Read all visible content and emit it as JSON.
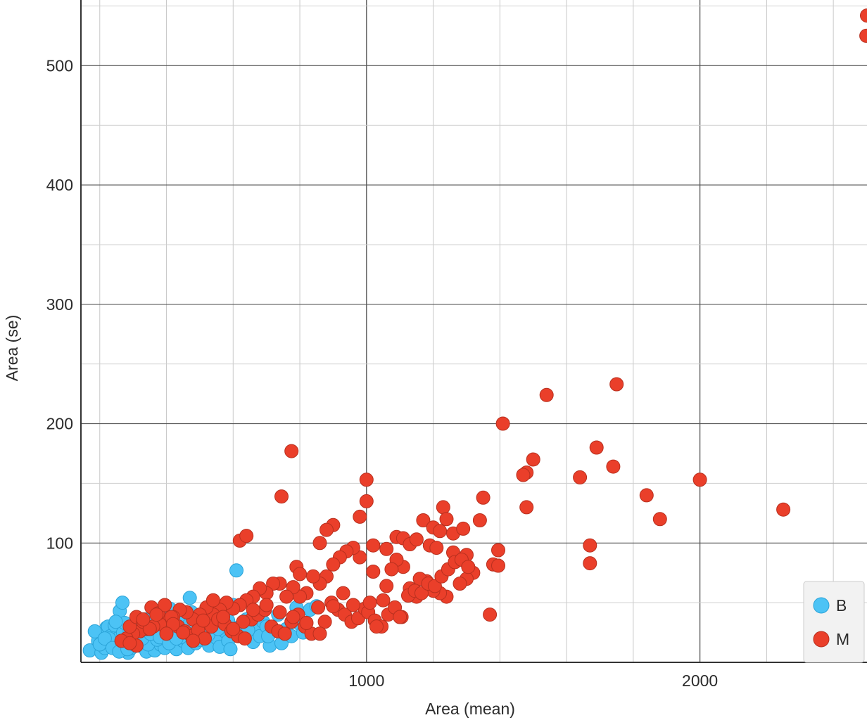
{
  "chart_data": {
    "type": "scatter",
    "xlabel": "Area (mean)",
    "ylabel": "Area (se)",
    "xlim": [
      143.5,
      2501
    ],
    "ylim": [
      0,
      555
    ],
    "x_ticks": [
      1000,
      2000
    ],
    "y_ticks": [
      100,
      200,
      300,
      400,
      500
    ],
    "grid": true,
    "legend_placement": "bottom-right",
    "series": [
      {
        "name": "B",
        "color": "#4cc3f5",
        "points": [
          [
            170,
            10
          ],
          [
            195,
            18
          ],
          [
            205,
            8
          ],
          [
            215,
            12
          ],
          [
            220,
            29
          ],
          [
            225,
            30
          ],
          [
            232,
            22
          ],
          [
            240,
            14
          ],
          [
            245,
            31
          ],
          [
            250,
            18
          ],
          [
            255,
            20
          ],
          [
            260,
            43
          ],
          [
            262,
            10
          ],
          [
            268,
            50
          ],
          [
            270,
            25
          ],
          [
            275,
            33
          ],
          [
            278,
            16
          ],
          [
            285,
            8
          ],
          [
            290,
            26
          ],
          [
            295,
            12
          ],
          [
            300,
            28
          ],
          [
            305,
            19
          ],
          [
            310,
            34
          ],
          [
            312,
            22
          ],
          [
            318,
            14
          ],
          [
            325,
            16
          ],
          [
            330,
            30
          ],
          [
            335,
            36
          ],
          [
            340,
            9
          ],
          [
            345,
            24
          ],
          [
            350,
            27
          ],
          [
            355,
            18
          ],
          [
            360,
            33
          ],
          [
            365,
            10
          ],
          [
            370,
            28
          ],
          [
            378,
            40
          ],
          [
            382,
            15
          ],
          [
            390,
            22
          ],
          [
            395,
            12
          ],
          [
            400,
            36
          ],
          [
            405,
            26
          ],
          [
            410,
            45
          ],
          [
            418,
            17
          ],
          [
            425,
            30
          ],
          [
            430,
            11
          ],
          [
            438,
            24
          ],
          [
            445,
            38
          ],
          [
            450,
            18
          ],
          [
            458,
            28
          ],
          [
            465,
            12
          ],
          [
            470,
            54
          ],
          [
            475,
            42
          ],
          [
            480,
            22
          ],
          [
            488,
            16
          ],
          [
            495,
            33
          ],
          [
            500,
            25
          ],
          [
            510,
            19
          ],
          [
            520,
            28
          ],
          [
            528,
            14
          ],
          [
            535,
            36
          ],
          [
            540,
            24
          ],
          [
            545,
            45
          ],
          [
            552,
            20
          ],
          [
            560,
            13
          ],
          [
            568,
            32
          ],
          [
            575,
            26
          ],
          [
            585,
            18
          ],
          [
            592,
            11
          ],
          [
            600,
            48
          ],
          [
            610,
            77
          ],
          [
            620,
            30
          ],
          [
            630,
            24
          ],
          [
            640,
            36
          ],
          [
            650,
            20
          ],
          [
            660,
            17
          ],
          [
            670,
            28
          ],
          [
            680,
            22
          ],
          [
            690,
            34
          ],
          [
            700,
            30
          ],
          [
            710,
            14
          ],
          [
            720,
            26
          ],
          [
            735,
            40
          ],
          [
            745,
            16
          ],
          [
            760,
            28
          ],
          [
            775,
            22
          ],
          [
            790,
            46
          ],
          [
            800,
            32
          ],
          [
            810,
            25
          ],
          [
            830,
            44
          ],
          [
            850,
            47
          ],
          [
            185,
            26
          ],
          [
            200,
            15
          ],
          [
            228,
            20
          ],
          [
            248,
            34
          ],
          [
            272,
            18
          ],
          [
            290,
            20
          ],
          [
            320,
            28
          ],
          [
            345,
            15
          ],
          [
            372,
            19
          ],
          [
            388,
            31
          ],
          [
            415,
            27
          ],
          [
            442,
            21
          ],
          [
            466,
            31
          ],
          [
            498,
            19
          ],
          [
            525,
            23
          ],
          [
            555,
            28
          ],
          [
            585,
            35
          ],
          [
            615,
            22
          ],
          [
            645,
            27
          ],
          [
            705,
            22
          ],
          [
            215,
            20
          ],
          [
            238,
            12
          ],
          [
            258,
            9
          ],
          [
            283,
            11
          ],
          [
            302,
            15
          ],
          [
            328,
            20
          ],
          [
            352,
            24
          ],
          [
            380,
            21
          ],
          [
            408,
            16
          ],
          [
            430,
            20
          ]
        ]
      },
      {
        "name": "M",
        "color": "#ea3f2a",
        "points": [
          [
            2501,
            542
          ],
          [
            2499,
            525
          ],
          [
            1750,
            233
          ],
          [
            1540,
            224
          ],
          [
            1409,
            200
          ],
          [
            1690,
            180
          ],
          [
            1500,
            170
          ],
          [
            775,
            177
          ],
          [
            1480,
            159
          ],
          [
            1470,
            157
          ],
          [
            1640,
            155
          ],
          [
            1740,
            164
          ],
          [
            2000,
            153
          ],
          [
            1000,
            153
          ],
          [
            1840,
            140
          ],
          [
            1000,
            135
          ],
          [
            745,
            139
          ],
          [
            1350,
            138
          ],
          [
            2250,
            128
          ],
          [
            1880,
            120
          ],
          [
            1480,
            130
          ],
          [
            1230,
            130
          ],
          [
            1240,
            120
          ],
          [
            1170,
            119
          ],
          [
            1340,
            119
          ],
          [
            1200,
            113
          ],
          [
            1220,
            110
          ],
          [
            1260,
            108
          ],
          [
            1290,
            112
          ],
          [
            980,
            122
          ],
          [
            900,
            115
          ],
          [
            880,
            111
          ],
          [
            860,
            100
          ],
          [
            1020,
            98
          ],
          [
            1060,
            95
          ],
          [
            1090,
            105
          ],
          [
            1110,
            104
          ],
          [
            1130,
            99
          ],
          [
            1150,
            103
          ],
          [
            1190,
            98
          ],
          [
            1210,
            96
          ],
          [
            1260,
            92
          ],
          [
            1300,
            90
          ],
          [
            1395,
            94
          ],
          [
            1670,
            98
          ],
          [
            1670,
            83
          ],
          [
            1380,
            82
          ],
          [
            1395,
            81
          ],
          [
            1320,
            75
          ],
          [
            1300,
            70
          ],
          [
            1280,
            66
          ],
          [
            1240,
            55
          ],
          [
            1220,
            58
          ],
          [
            1200,
            60
          ],
          [
            1180,
            68
          ],
          [
            1160,
            70
          ],
          [
            1150,
            55
          ],
          [
            1130,
            62
          ],
          [
            1110,
            80
          ],
          [
            1090,
            86
          ],
          [
            1075,
            78
          ],
          [
            1060,
            64
          ],
          [
            1050,
            52
          ],
          [
            1020,
            76
          ],
          [
            980,
            88
          ],
          [
            960,
            96
          ],
          [
            940,
            93
          ],
          [
            920,
            88
          ],
          [
            900,
            82
          ],
          [
            880,
            72
          ],
          [
            860,
            66
          ],
          [
            840,
            72
          ],
          [
            820,
            58
          ],
          [
            800,
            55
          ],
          [
            780,
            63
          ],
          [
            760,
            55
          ],
          [
            740,
            66
          ],
          [
            720,
            66
          ],
          [
            700,
            58
          ],
          [
            680,
            62
          ],
          [
            660,
            55
          ],
          [
            640,
            52
          ],
          [
            620,
            48
          ],
          [
            600,
            45
          ],
          [
            580,
            50
          ],
          [
            560,
            44
          ],
          [
            540,
            40
          ],
          [
            520,
            46
          ],
          [
            500,
            40
          ],
          [
            480,
            36
          ],
          [
            460,
            42
          ],
          [
            440,
            44
          ],
          [
            420,
            38
          ],
          [
            400,
            36
          ],
          [
            380,
            32
          ],
          [
            360,
            30
          ],
          [
            340,
            28
          ],
          [
            320,
            26
          ],
          [
            300,
            24
          ],
          [
            280,
            20
          ],
          [
            265,
            18
          ],
          [
            290,
            30
          ],
          [
            310,
            38
          ],
          [
            330,
            34
          ],
          [
            355,
            46
          ],
          [
            375,
            41
          ],
          [
            395,
            48
          ],
          [
            415,
            38
          ],
          [
            435,
            30
          ],
          [
            455,
            26
          ],
          [
            475,
            22
          ],
          [
            495,
            27
          ],
          [
            515,
            20
          ],
          [
            535,
            30
          ],
          [
            555,
            36
          ],
          [
            575,
            32
          ],
          [
            595,
            26
          ],
          [
            615,
            22
          ],
          [
            635,
            20
          ],
          [
            655,
            36
          ],
          [
            675,
            40
          ],
          [
            695,
            44
          ],
          [
            715,
            30
          ],
          [
            735,
            26
          ],
          [
            755,
            24
          ],
          [
            775,
            34
          ],
          [
            795,
            40
          ],
          [
            815,
            30
          ],
          [
            835,
            24
          ],
          [
            855,
            46
          ],
          [
            875,
            34
          ],
          [
            895,
            50
          ],
          [
            915,
            44
          ],
          [
            935,
            40
          ],
          [
            955,
            34
          ],
          [
            975,
            37
          ],
          [
            995,
            45
          ],
          [
            1005,
            42
          ],
          [
            1025,
            35
          ],
          [
            1045,
            30
          ],
          [
            1065,
            40
          ],
          [
            1085,
            46
          ],
          [
            1105,
            38
          ],
          [
            1125,
            56
          ],
          [
            1145,
            60
          ],
          [
            1165,
            58
          ],
          [
            1185,
            66
          ],
          [
            1205,
            64
          ],
          [
            1225,
            72
          ],
          [
            1245,
            78
          ],
          [
            1265,
            84
          ],
          [
            1285,
            86
          ],
          [
            1305,
            80
          ],
          [
            1370,
            40
          ],
          [
            1100,
            38
          ],
          [
            1030,
            30
          ],
          [
            620,
            102
          ],
          [
            640,
            106
          ],
          [
            790,
            80
          ],
          [
            800,
            74
          ],
          [
            1010,
            50
          ],
          [
            960,
            48
          ],
          [
            930,
            58
          ],
          [
            900,
            47
          ],
          [
            860,
            24
          ],
          [
            820,
            33
          ],
          [
            780,
            38
          ],
          [
            740,
            42
          ],
          [
            700,
            48
          ],
          [
            660,
            44
          ],
          [
            630,
            34
          ],
          [
            600,
            28
          ],
          [
            570,
            38
          ],
          [
            540,
            52
          ],
          [
            510,
            35
          ],
          [
            480,
            18
          ],
          [
            450,
            25
          ],
          [
            420,
            32
          ],
          [
            400,
            24
          ],
          [
            370,
            40
          ],
          [
            350,
            28
          ],
          [
            330,
            36
          ],
          [
            310,
            14
          ],
          [
            290,
            16
          ]
        ]
      }
    ]
  }
}
